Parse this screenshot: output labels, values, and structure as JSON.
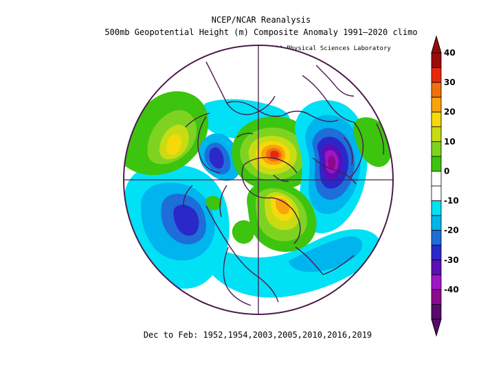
{
  "header": {
    "title": "NCEP/NCAR Reanalysis",
    "subtitle": "500mb Geopotential Height (m) Composite Anomaly 1991–2020 climo",
    "credit": "NOAA Physical Sciences Laboratory"
  },
  "footer": {
    "period": "Dec to Feb: 1952,1954,2003,2005,2010,2016,2019"
  },
  "colorbar": {
    "unit": "m",
    "tick_labels": [
      "40",
      "30",
      "20",
      "10",
      "0",
      "-10",
      "-20",
      "-30",
      "-40"
    ],
    "colors": [
      "#9b0a0a",
      "#e8280c",
      "#f0700f",
      "#f9a40a",
      "#f7d80b",
      "#c8dc14",
      "#7ed321",
      "#3cc40f",
      "#ffffff",
      "#ffffff",
      "#00e1f5",
      "#00b4ee",
      "#1e6ed9",
      "#2a28c8",
      "#5a0fb4",
      "#a014c8",
      "#8b0a8c",
      "#5a0a6e"
    ]
  },
  "map": {
    "projection": "north polar stereographic",
    "anomalies": [
      {
        "name": "greenland-arctic-ridge",
        "sign": "positive",
        "peak_m": 35
      },
      {
        "name": "europe-siberia-trough",
        "sign": "negative",
        "peak_m": -35
      },
      {
        "name": "northeast-pacific-trough",
        "sign": "negative",
        "peak_m": -20
      },
      {
        "name": "siberia-ridge",
        "sign": "positive",
        "peak_m": 25
      },
      {
        "name": "north-america-trough",
        "sign": "negative",
        "peak_m": -20
      },
      {
        "name": "mid-latitude-atlantic-positive",
        "sign": "positive",
        "peak_m": 20
      }
    ]
  }
}
